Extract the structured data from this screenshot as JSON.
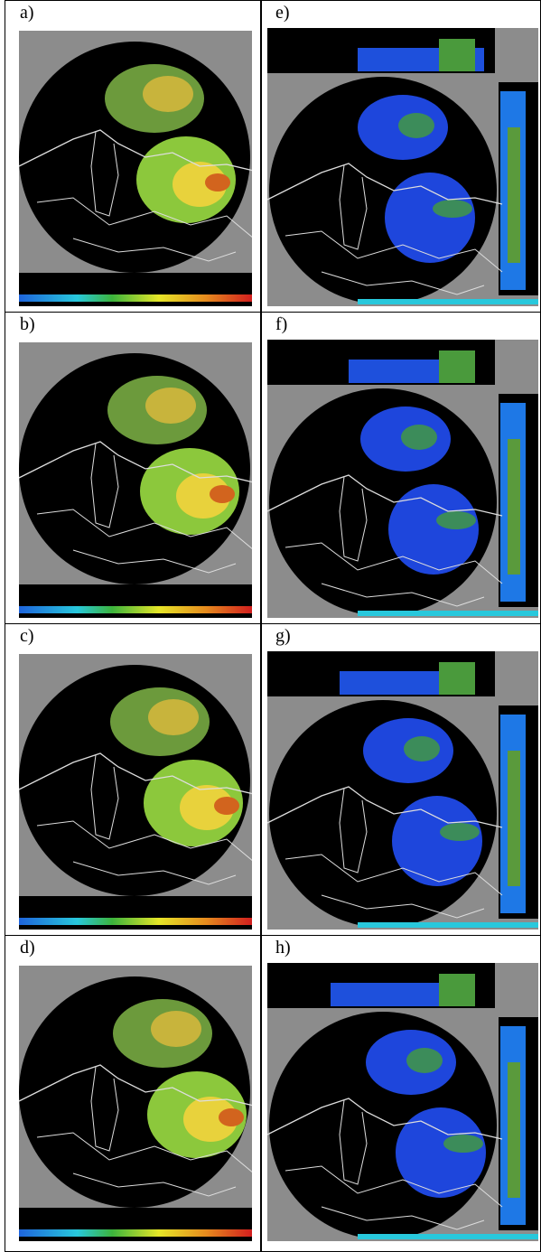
{
  "table": {
    "rows": [
      [
        "a)",
        "e)"
      ],
      [
        "b)",
        "f)"
      ],
      [
        "c)",
        "g)"
      ],
      [
        "d)",
        "h)"
      ]
    ]
  }
}
